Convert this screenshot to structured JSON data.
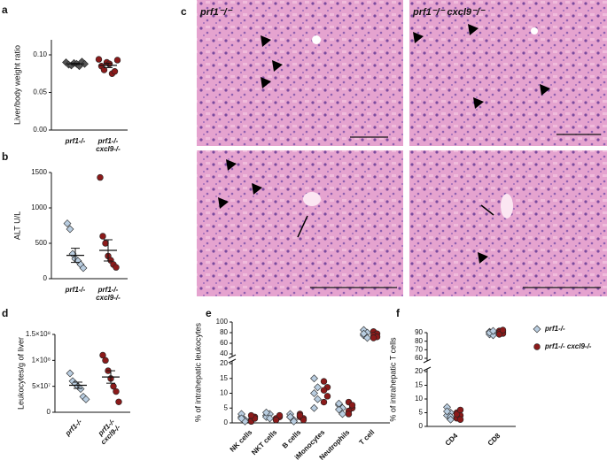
{
  "panel_c": {
    "label": "c",
    "titles": [
      "prf1⁻/⁻",
      "prf1⁻/⁻ cxcl9⁻/⁻"
    ]
  },
  "chart_data": [
    {
      "type": "dot",
      "panel": "a",
      "ylabel": "Liver/body weight ratio",
      "categories": [
        "prf1-/-",
        "prf1-/- cxcl9-/-"
      ],
      "colors": [
        "#555555",
        "#8b1a1a"
      ],
      "markers": [
        "diamond",
        "circle"
      ],
      "values": [
        [
          0.09,
          0.087,
          0.086,
          0.089,
          0.088,
          0.085,
          0.091,
          0.088
        ],
        [
          0.094,
          0.085,
          0.08,
          0.09,
          0.088,
          0.075,
          0.078,
          0.093
        ]
      ],
      "means": [
        0.088,
        0.086
      ],
      "errors": [
        0.001,
        0.003
      ],
      "ylim": [
        0,
        0.12
      ],
      "yticks": [
        {
          "value": 0,
          "label": "0.00"
        },
        {
          "value": 0.05,
          "label": "0.05"
        },
        {
          "value": 0.1,
          "label": "0.10"
        }
      ]
    },
    {
      "type": "dot",
      "panel": "b",
      "ylabel": "ALT U/L",
      "categories": [
        "prf1-/-",
        "prf1-/- cxcl9-/-"
      ],
      "colors": [
        "#b9cde0",
        "#8b1a1a"
      ],
      "markers": [
        "diamond",
        "circle"
      ],
      "values": [
        [
          780,
          700,
          350,
          280,
          250,
          200,
          150
        ],
        [
          1430,
          600,
          500,
          320,
          260,
          200,
          160
        ]
      ],
      "means": [
        330,
        400
      ],
      "errors": [
        100,
        150
      ],
      "ylim": [
        0,
        1500
      ],
      "yticks": [
        0,
        500,
        1000,
        1500
      ]
    },
    {
      "type": "dot",
      "panel": "d",
      "ylabel": "Leukocytes/g of liver",
      "categories": [
        "prf1-/-",
        "prf1-/- cxcl9-/-"
      ],
      "colors": [
        "#b9cde0",
        "#8b1a1a"
      ],
      "markers": [
        "diamond",
        "circle"
      ],
      "values": [
        [
          75000000,
          60000000,
          55000000,
          50000000,
          45000000,
          30000000,
          25000000
        ],
        [
          110000000,
          100000000,
          80000000,
          65000000,
          50000000,
          40000000,
          20000000
        ]
      ],
      "means": [
        52000000,
        68000000
      ],
      "errors": [
        6000000,
        12000000
      ],
      "ylim": [
        0,
        150000000
      ],
      "yticks": [
        0,
        {
          "value": 50000000,
          "label": "5×10⁷"
        },
        {
          "value": 100000000,
          "label": "1×10⁸"
        },
        {
          "value": 150000000,
          "label": "1.5×10⁸"
        }
      ]
    },
    {
      "type": "grouped_dot",
      "panel": "e",
      "ylabel": "% of intrahepatic leukocytes",
      "categories": [
        "NK cells",
        "NKT cells",
        "B cells",
        "iMonocytes",
        "Neutrophils",
        "T cell"
      ],
      "series": [
        {
          "color": "#b9cde0",
          "marker": "diamond",
          "values": [
            [
              2,
              1,
              3,
              0.5,
              1.5
            ],
            [
              2.5,
              3,
              2,
              1.5,
              3.5
            ],
            [
              2,
              1,
              3,
              0.5,
              2
            ],
            [
              15,
              12,
              10,
              8,
              5
            ],
            [
              6,
              5,
              4.5,
              3,
              6.5
            ],
            [
              85,
              80,
              75,
              70,
              78
            ]
          ]
        },
        {
          "color": "#8b1a1a",
          "marker": "circle",
          "values": [
            [
              1,
              2,
              0.5,
              1.5,
              2.5
            ],
            [
              1.5,
              2,
              1,
              2.5,
              1
            ],
            [
              2,
              1.5,
              3,
              1,
              2.5
            ],
            [
              14,
              12,
              11,
              9,
              7
            ],
            [
              7,
              5,
              4,
              6,
              3
            ],
            [
              82,
              78,
              75,
              72,
              70
            ]
          ]
        }
      ],
      "ylim": [
        0,
        100
      ],
      "y_break": [
        20,
        40
      ],
      "yticks": [
        0,
        5,
        10,
        15,
        20,
        40,
        60,
        80,
        100
      ]
    },
    {
      "type": "grouped_dot",
      "panel": "f",
      "ylabel": "% of intrahepatic T cells",
      "categories": [
        "CD4",
        "CD8"
      ],
      "series": [
        {
          "name": "prf1-/-",
          "color": "#b9cde0",
          "marker": "diamond",
          "values": [
            [
              7,
              5,
              4,
              3.5,
              5.5,
              2.5
            ],
            [
              91,
              89,
              88,
              87,
              90,
              92
            ]
          ]
        },
        {
          "name": "prf1-/- cxcl9-/-",
          "color": "#8b1a1a",
          "marker": "circle",
          "values": [
            [
              5,
              4,
              3,
              2.5,
              4.5,
              6
            ],
            [
              92,
              91,
              90,
              89,
              88,
              93
            ]
          ]
        }
      ],
      "ylim": [
        0,
        90
      ],
      "y_break": [
        20,
        60
      ],
      "yticks": [
        0,
        5,
        10,
        15,
        20,
        60,
        70,
        80,
        90
      ]
    }
  ]
}
